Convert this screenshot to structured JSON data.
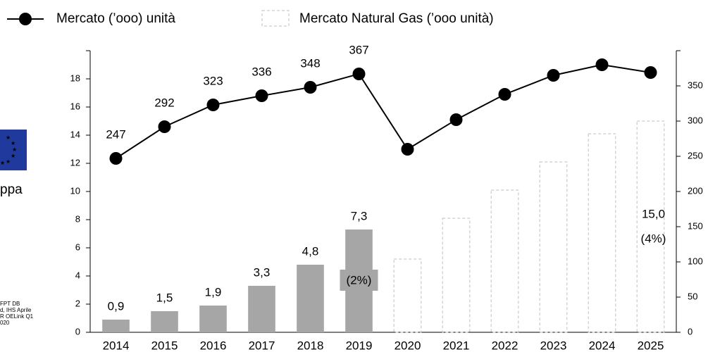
{
  "chart_data": {
    "type": "bar_line",
    "categories": [
      "2014",
      "2015",
      "2016",
      "2017",
      "2018",
      "2019",
      "2020",
      "2021",
      "2022",
      "2023",
      "2024",
      "2025"
    ],
    "series": [
      {
        "type": "bar",
        "color": "#a6a6a6",
        "values": [
          0.9,
          1.5,
          1.9,
          3.3,
          4.8,
          7.3,
          null,
          null,
          null,
          null,
          null,
          null
        ],
        "value_labels": [
          "0,9",
          "1,5",
          "1,9",
          "3,3",
          "4,8",
          "7,3",
          null,
          null,
          null,
          null,
          null,
          null
        ]
      },
      {
        "type": "bar",
        "name": "Mercato Natural Gas (’ooo unità)",
        "color": "#bfbfbf",
        "dashed": true,
        "values": [
          null,
          null,
          null,
          null,
          null,
          null,
          5.2,
          8.1,
          10.1,
          12.1,
          14.1,
          15.0
        ],
        "value_labels": [
          null,
          null,
          null,
          null,
          null,
          null,
          null,
          null,
          null,
          null,
          null,
          "15,0"
        ]
      },
      {
        "type": "line",
        "name": "Mercato (’ooo) unità",
        "color": "#000000",
        "axis": "y2",
        "values": [
          247,
          292,
          323,
          336,
          348,
          367,
          260,
          302,
          338,
          365,
          380,
          369
        ],
        "value_labels": [
          "247",
          "292",
          "323",
          "336",
          "348",
          "367",
          null,
          null,
          null,
          null,
          null,
          null
        ]
      }
    ],
    "ylim": [
      0,
      20
    ],
    "yticks": [
      0,
      2,
      4,
      6,
      8,
      10,
      12,
      14,
      16,
      18
    ],
    "y2lim": [
      0,
      400
    ],
    "y2ticks": [
      0,
      50,
      100,
      150,
      200,
      250,
      300,
      350
    ],
    "annotations": [
      "(2%)",
      "(4%)"
    ],
    "side_text": {
      "region": "ppa",
      "source": [
        "FPT DB",
        "d, IHS Aprile",
        "R OELink Q1",
        "020"
      ]
    }
  }
}
